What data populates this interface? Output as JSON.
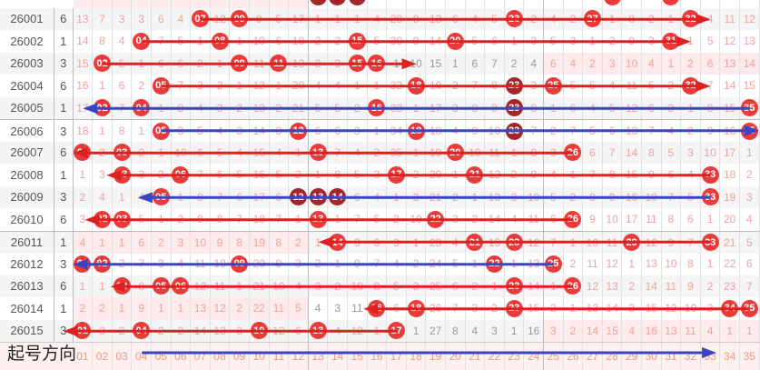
{
  "colors": {
    "ball": "#ea3b3b",
    "ball_dark": "#a3272a",
    "miss_text": "#eba3a3",
    "arrow_red": "#dd2020",
    "arrow_blue": "#3a45c2"
  },
  "top_partial": {
    "balls": [
      13,
      14,
      15,
      28,
      31
    ],
    "dark": [
      13,
      14,
      15
    ]
  },
  "rows": [
    {
      "issue": "26001",
      "count": "6",
      "cells": [
        "13",
        "7",
        "3",
        "3",
        "6",
        "4",
        "07",
        "12",
        "09",
        "9",
        "5",
        "17",
        "1",
        "1",
        "1",
        "4",
        "29",
        "8",
        "13",
        "6",
        "4",
        "5",
        "23",
        "2",
        "4",
        "2",
        "27",
        "1",
        "8",
        "2",
        "1",
        "32",
        "4",
        "11",
        "12"
      ],
      "balls": [
        7,
        9,
        23,
        27,
        32
      ],
      "dark": [],
      "pink": [],
      "gray": []
    },
    {
      "issue": "26002",
      "count": "1",
      "cells": [
        "14",
        "8",
        "4",
        "04",
        "7",
        "5",
        "1",
        "08",
        "1",
        "10",
        "6",
        "18",
        "2",
        "2",
        "15",
        "5",
        "30",
        "9",
        "14",
        "20",
        "5",
        "6",
        "1",
        "3",
        "5",
        "3",
        "1",
        "2",
        "9",
        "3",
        "31",
        "1",
        "5",
        "12",
        "13"
      ],
      "balls": [
        4,
        8,
        15,
        20,
        31
      ],
      "dark": [],
      "pink": [],
      "gray": []
    },
    {
      "issue": "26003",
      "count": "3",
      "cells": [
        "15",
        "02",
        "5",
        "1",
        "6",
        "6",
        "2",
        "1",
        "09",
        "11",
        "11",
        "13",
        "3",
        "3",
        "15",
        "16",
        "1",
        "10",
        "15",
        "1",
        "6",
        "7",
        "2",
        "4",
        "6",
        "4",
        "2",
        "3",
        "10",
        "4",
        "1",
        "2",
        "6",
        "13",
        "14"
      ],
      "balls": [
        2,
        9,
        11,
        15,
        16
      ],
      "dark": [],
      "pink": [
        25,
        26,
        27,
        28,
        29,
        30,
        31,
        32,
        33,
        34,
        35
      ],
      "gray": [
        17,
        18,
        19,
        20,
        21,
        22,
        23,
        24
      ]
    },
    {
      "issue": "26004",
      "count": "6",
      "cells": [
        "16",
        "1",
        "6",
        "2",
        "05",
        "7",
        "3",
        "2",
        "1",
        "12",
        "1",
        "20",
        "4",
        "4",
        "1",
        "1",
        "32",
        "18",
        "10",
        "2",
        "7",
        "8",
        "23",
        "3",
        "25",
        "5",
        "5",
        "4",
        "11",
        "5",
        "2",
        "32",
        "7",
        "14",
        "15"
      ],
      "balls": [
        5,
        18,
        23,
        25,
        32
      ],
      "dark": [
        23
      ],
      "pink": [],
      "gray": []
    },
    {
      "issue": "26005",
      "count": "1",
      "cells": [
        "17",
        "02",
        "7",
        "04",
        "1",
        "8",
        "4",
        "3",
        "2",
        "13",
        "2",
        "21",
        "5",
        "5",
        "2",
        "16",
        "33",
        "1",
        "17",
        "3",
        "8",
        "9",
        "23",
        "8",
        "1",
        "6",
        "4",
        "5",
        "12",
        "6",
        "3",
        "1",
        "8",
        "15",
        "35"
      ],
      "balls": [
        2,
        4,
        16,
        23,
        35
      ],
      "dark": [
        23
      ],
      "pink": [],
      "gray": []
    },
    {
      "issue": "26006",
      "count": "3",
      "cells": [
        "18",
        "1",
        "8",
        "1",
        "05",
        "3",
        "5",
        "4",
        "3",
        "14",
        "3",
        "12",
        "6",
        "6",
        "3",
        "1",
        "34",
        "18",
        "18",
        "4",
        "9",
        "10",
        "23",
        "7",
        "2",
        "7",
        "5",
        "6",
        "13",
        "7",
        "4",
        "2",
        "9",
        "16",
        "35"
      ],
      "balls": [
        5,
        12,
        18,
        23,
        35
      ],
      "dark": [
        23
      ],
      "pink": [],
      "gray": []
    },
    {
      "issue": "26007",
      "count": "6",
      "cells": [
        "01",
        "2",
        "03",
        "2",
        "1",
        "10",
        "6",
        "5",
        "4",
        "15",
        "4",
        "1",
        "13",
        "7",
        "4",
        "2",
        "35",
        "1",
        "19",
        "20",
        "10",
        "11",
        "1",
        "8",
        "3",
        "26",
        "6",
        "7",
        "14",
        "8",
        "5",
        "3",
        "10",
        "17",
        "1"
      ],
      "balls": [
        1,
        3,
        13,
        20,
        26
      ],
      "dark": [],
      "pink": [],
      "gray": []
    },
    {
      "issue": "26008",
      "count": "1",
      "cells": [
        "1",
        "3",
        "03",
        "3",
        "2",
        "06",
        "7",
        "6",
        "5",
        "16",
        "5",
        "2",
        "1",
        "8",
        "5",
        "3",
        "17",
        "2",
        "20",
        "1",
        "21",
        "12",
        "2",
        "9",
        "4",
        "1",
        "7",
        "8",
        "15",
        "9",
        "6",
        "4",
        "33",
        "18",
        "2"
      ],
      "balls": [
        3,
        6,
        17,
        21,
        33
      ],
      "dark": [],
      "pink": [],
      "gray": []
    },
    {
      "issue": "26009",
      "count": "3",
      "cells": [
        "2",
        "4",
        "1",
        "4",
        "05",
        "1",
        "8",
        "7",
        "6",
        "17",
        "6",
        "12",
        "13",
        "14",
        "6",
        "4",
        "1",
        "3",
        "21",
        "2",
        "1",
        "13",
        "3",
        "10",
        "5",
        "2",
        "8",
        "9",
        "16",
        "10",
        "7",
        "5",
        "33",
        "19",
        "3"
      ],
      "balls": [
        5,
        12,
        13,
        14,
        33
      ],
      "dark": [
        12,
        13,
        14
      ],
      "pink": [],
      "gray": []
    },
    {
      "issue": "26010",
      "count": "6",
      "cells": [
        "3",
        "02",
        "03",
        "5",
        "1",
        "2",
        "9",
        "8",
        "7",
        "18",
        "7",
        "1",
        "13",
        "1",
        "7",
        "5",
        "2",
        "19",
        "22",
        "3",
        "2",
        "14",
        "4",
        "11",
        "6",
        "26",
        "9",
        "10",
        "17",
        "11",
        "8",
        "6",
        "1",
        "20",
        "4"
      ],
      "balls": [
        2,
        3,
        13,
        19,
        26
      ],
      "dark": [],
      "pink": [],
      "gray": []
    },
    {
      "issue": "26011",
      "count": "1",
      "cells": [
        "4",
        "1",
        "1",
        "6",
        "2",
        "3",
        "10",
        "9",
        "8",
        "19",
        "8",
        "2",
        "1",
        "14",
        "3",
        "6",
        "3",
        "1",
        "23",
        "4",
        "21",
        "15",
        "23",
        "12",
        "7",
        "1",
        "10",
        "11",
        "29",
        "12",
        "9",
        "7",
        "33",
        "21",
        "5"
      ],
      "balls": [
        14,
        21,
        23,
        29,
        33
      ],
      "dark": [],
      "pink": [
        1,
        2,
        3,
        4,
        5,
        6,
        7,
        8,
        9,
        10,
        11,
        12
      ],
      "gray": []
    },
    {
      "issue": "26012",
      "count": "3",
      "cells": [
        "01",
        "02",
        "2",
        "7",
        "3",
        "4",
        "11",
        "10",
        "09",
        "20",
        "9",
        "3",
        "2",
        "1",
        "9",
        "7",
        "4",
        "2",
        "24",
        "5",
        "1",
        "22",
        "1",
        "13",
        "25",
        "2",
        "11",
        "12",
        "1",
        "13",
        "10",
        "8",
        "1",
        "22",
        "6"
      ],
      "balls": [
        1,
        2,
        9,
        22,
        25
      ],
      "dark": [],
      "pink": [],
      "gray": []
    },
    {
      "issue": "26013",
      "count": "6",
      "cells": [
        "1",
        "1",
        "03",
        "8",
        "05",
        "06",
        "12",
        "11",
        "1",
        "21",
        "10",
        "4",
        "3",
        "2",
        "10",
        "8",
        "5",
        "3",
        "25",
        "6",
        "2",
        "1",
        "23",
        "14",
        "1",
        "26",
        "12",
        "13",
        "2",
        "14",
        "11",
        "9",
        "2",
        "23",
        "7"
      ],
      "balls": [
        3,
        5,
        6,
        23,
        26
      ],
      "dark": [],
      "pink": [],
      "gray": []
    },
    {
      "issue": "26014",
      "count": "1",
      "cells": [
        "2",
        "2",
        "1",
        "9",
        "1",
        "1",
        "13",
        "12",
        "2",
        "22",
        "11",
        "5",
        "4",
        "3",
        "11",
        "16",
        "6",
        "18",
        "26",
        "7",
        "3",
        "2",
        "23",
        "15",
        "2",
        "1",
        "13",
        "14",
        "3",
        "15",
        "12",
        "10",
        "3",
        "34",
        "35"
      ],
      "balls": [
        16,
        18,
        23,
        34,
        35
      ],
      "dark": [],
      "pink": [
        1,
        2,
        3,
        4,
        5,
        6,
        7,
        8,
        9,
        10,
        11,
        12
      ],
      "gray": [
        13,
        14,
        15
      ]
    },
    {
      "issue": "26015",
      "count": "3",
      "cells": [
        "01",
        "3",
        "2",
        "04",
        "2",
        "2",
        "14",
        "13",
        "3",
        "10",
        "12",
        "6",
        "13",
        "4",
        "12",
        "1",
        "17",
        "1",
        "27",
        "8",
        "4",
        "3",
        "1",
        "16",
        "3",
        "2",
        "14",
        "15",
        "4",
        "16",
        "13",
        "11",
        "4",
        "1",
        "1"
      ],
      "balls": [
        1,
        4,
        10,
        13,
        17
      ],
      "dark": [],
      "pink": [
        25,
        26,
        27,
        28,
        29,
        30,
        31,
        32,
        33,
        34,
        35
      ],
      "gray": [
        18,
        19,
        20,
        21,
        22,
        23,
        24
      ]
    }
  ],
  "footer": {
    "label": "起号方向",
    "numbers": [
      "01",
      "02",
      "03",
      "04",
      "05",
      "06",
      "07",
      "08",
      "09",
      "10",
      "11",
      "12",
      "13",
      "14",
      "15",
      "16",
      "17",
      "18",
      "19",
      "20",
      "21",
      "22",
      "23",
      "24",
      "25",
      "26",
      "27",
      "28",
      "29",
      "30",
      "31",
      "32",
      "33",
      "34",
      "35"
    ]
  },
  "arrows": [
    {
      "row": 0,
      "from": 7,
      "to": 33,
      "color": "red"
    },
    {
      "row": 1,
      "from": 4,
      "to": 32,
      "color": "red"
    },
    {
      "row": 2,
      "from": 2,
      "to": 18,
      "color": "red"
    },
    {
      "row": 3,
      "from": 5,
      "to": 33,
      "color": "red"
    },
    {
      "row": 4,
      "from": 35,
      "to": 1,
      "color": "blue"
    },
    {
      "row": 5,
      "from": 5,
      "to": 36,
      "color": "blue"
    },
    {
      "row": 6,
      "from": 26,
      "to": 0.5,
      "color": "red"
    },
    {
      "row": 7,
      "from": 33,
      "to": 2.2,
      "color": "red"
    },
    {
      "row": 8,
      "from": 33,
      "to": 3.8,
      "color": "blue"
    },
    {
      "row": 9,
      "from": 26,
      "to": 1.1,
      "color": "red"
    },
    {
      "row": 10,
      "from": 33,
      "to": 13,
      "color": "red"
    },
    {
      "row": 11,
      "from": 25,
      "to": 0.5,
      "color": "blue"
    },
    {
      "row": 12,
      "from": 26,
      "to": 2.4,
      "color": "red"
    },
    {
      "row": 13,
      "from": 35,
      "to": 15.3,
      "color": "red"
    },
    {
      "row": 14,
      "from": 17,
      "to": 0,
      "color": "red"
    },
    {
      "row": "footer",
      "from": 4,
      "to": 33.3,
      "color": "blue"
    }
  ]
}
